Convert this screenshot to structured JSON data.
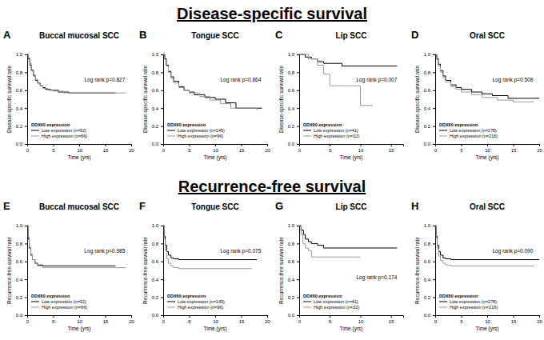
{
  "headings": [
    "Disease-specific survival",
    "Recurrence-free survival"
  ],
  "chart_data": [
    {
      "type": "step",
      "panel": "A",
      "title": "Buccal mucosal SCC",
      "y_label": "Disease-specific survival rate",
      "x_label": "Time (yrs)",
      "annotations": [
        "Log rank p=0.827"
      ],
      "legend_title": "DDX60 expression",
      "legend": "lower left",
      "xlim": [
        0,
        20
      ],
      "xticks": [
        0,
        5,
        10,
        15,
        20
      ],
      "ylim": [
        0,
        1
      ],
      "yticks": [
        {
          "value": 0,
          "label": "0.0"
        },
        {
          "value": 0.2,
          "label": "0.2"
        },
        {
          "value": 0.4,
          "label": "0.4"
        },
        {
          "value": 0.6,
          "label": "0.6"
        },
        {
          "value": 0.8,
          "label": "0.8"
        },
        {
          "value": 1,
          "label": "1.0"
        }
      ],
      "series": [
        {
          "name": "Low expression (n=92)",
          "color": "#000000",
          "x": [
            0,
            0.2,
            0.5,
            0.8,
            1.2,
            1.6,
            2,
            2.5,
            3,
            3.5,
            4.5,
            6,
            8,
            17
          ],
          "values": [
            1,
            0.95,
            0.88,
            0.82,
            0.76,
            0.71,
            0.68,
            0.65,
            0.63,
            0.61,
            0.6,
            0.58,
            0.57,
            0.57
          ]
        },
        {
          "name": "High expression (n=66)",
          "color": "#999999",
          "x": [
            0,
            0.2,
            0.5,
            0.8,
            1.2,
            1.6,
            2,
            2.5,
            3,
            4,
            5,
            7,
            19
          ],
          "values": [
            1,
            0.96,
            0.9,
            0.83,
            0.77,
            0.72,
            0.68,
            0.65,
            0.62,
            0.6,
            0.59,
            0.57,
            0.57
          ]
        }
      ]
    },
    {
      "type": "step",
      "panel": "B",
      "title": "Tongue SCC",
      "y_label": "Disease-specific survival rate",
      "x_label": "Time (yrs)",
      "annotations": [
        "Log rank p=0.864"
      ],
      "legend_title": "DDX60 expression",
      "legend": "lower left",
      "xlim": [
        0,
        20
      ],
      "xticks": [
        0,
        5,
        10,
        15,
        20
      ],
      "ylim": [
        0,
        1
      ],
      "yticks": [
        {
          "value": 0,
          "label": "0.0"
        },
        {
          "value": 0.2,
          "label": "0.2"
        },
        {
          "value": 0.4,
          "label": "0.4"
        },
        {
          "value": 0.6,
          "label": "0.6"
        },
        {
          "value": 0.8,
          "label": "0.8"
        },
        {
          "value": 1,
          "label": "1.0"
        }
      ],
      "series": [
        {
          "name": "Low expression (n=145)",
          "color": "#000000",
          "x": [
            0,
            0.3,
            0.6,
            1,
            1.5,
            2,
            3,
            4,
            5,
            6,
            8,
            10,
            12,
            14,
            19
          ],
          "values": [
            1,
            0.95,
            0.88,
            0.81,
            0.75,
            0.7,
            0.64,
            0.6,
            0.58,
            0.55,
            0.52,
            0.5,
            0.46,
            0.4,
            0.4
          ]
        },
        {
          "name": "High expression (n=96)",
          "color": "#999999",
          "x": [
            0,
            0.3,
            0.6,
            1,
            1.5,
            2,
            3,
            4,
            5,
            7,
            9,
            11,
            13,
            18
          ],
          "values": [
            1,
            0.94,
            0.87,
            0.8,
            0.73,
            0.68,
            0.63,
            0.6,
            0.57,
            0.53,
            0.49,
            0.45,
            0.4,
            0.38
          ]
        }
      ]
    },
    {
      "type": "step",
      "panel": "C",
      "title": "Lip SCC",
      "y_label": "Disease-specific survival rate",
      "x_label": "Time (yrs)",
      "annotations": [
        "Log rank p=0.007"
      ],
      "legend_title": "DDX60 expression",
      "legend": "lower left",
      "xlim": [
        0,
        17
      ],
      "xticks": [
        0,
        5,
        10,
        15
      ],
      "ylim": [
        0,
        1
      ],
      "yticks": [
        {
          "value": 0,
          "label": "0.0"
        },
        {
          "value": 0.2,
          "label": "0.2"
        },
        {
          "value": 0.4,
          "label": "0.4"
        },
        {
          "value": 0.6,
          "label": "0.6"
        },
        {
          "value": 0.8,
          "label": "0.8"
        },
        {
          "value": 1,
          "label": "1.0"
        }
      ],
      "series": [
        {
          "name": "Low expression (n=41)",
          "color": "#000000",
          "x": [
            0,
            1,
            2,
            3,
            4,
            5,
            7,
            16
          ],
          "values": [
            1,
            0.97,
            0.95,
            0.92,
            0.9,
            0.9,
            0.87,
            0.87
          ]
        },
        {
          "name": "High expression (n=32)",
          "color": "#999999",
          "x": [
            0,
            1.5,
            3,
            4,
            5,
            6,
            10,
            12
          ],
          "values": [
            1,
            0.95,
            0.88,
            0.78,
            0.65,
            0.65,
            0.43,
            0.43
          ]
        }
      ]
    },
    {
      "type": "step",
      "panel": "D",
      "title": "Oral SCC",
      "y_label": "Disease-specific survival rate",
      "x_label": "Time (yrs)",
      "annotations": [
        "Log rank p=0.508"
      ],
      "legend_title": "DDX60 expression",
      "legend": "lower left",
      "xlim": [
        0,
        20
      ],
      "xticks": [
        0,
        5,
        10,
        15,
        20
      ],
      "ylim": [
        0,
        1
      ],
      "yticks": [
        {
          "value": 0,
          "label": "0.0"
        },
        {
          "value": 0.2,
          "label": "0.2"
        },
        {
          "value": 0.4,
          "label": "0.4"
        },
        {
          "value": 0.6,
          "label": "0.6"
        },
        {
          "value": 0.8,
          "label": "0.8"
        },
        {
          "value": 1,
          "label": "1.0"
        }
      ],
      "series": [
        {
          "name": "Low expression (n=278)",
          "color": "#000000",
          "x": [
            0,
            0.3,
            0.6,
            1,
            1.5,
            2,
            3,
            4,
            5,
            7,
            9,
            11,
            14,
            20
          ],
          "values": [
            1,
            0.95,
            0.89,
            0.82,
            0.76,
            0.71,
            0.66,
            0.63,
            0.61,
            0.58,
            0.56,
            0.54,
            0.51,
            0.51
          ]
        },
        {
          "name": "High expression (n=216)",
          "color": "#999999",
          "x": [
            0,
            0.3,
            0.6,
            1,
            1.5,
            2,
            3,
            4,
            5,
            7,
            9,
            12,
            15,
            19
          ],
          "values": [
            1,
            0.94,
            0.87,
            0.8,
            0.74,
            0.69,
            0.64,
            0.61,
            0.58,
            0.55,
            0.52,
            0.49,
            0.47,
            0.47
          ]
        }
      ]
    },
    {
      "type": "step",
      "panel": "E",
      "title": "Buccal mucosal SCC",
      "y_label": "Recurrence-free survival rate",
      "x_label": "Time (yrs)",
      "annotations": [
        "Log rank p=0.985"
      ],
      "legend_title": "DDX60 expression",
      "legend": "lower left",
      "xlim": [
        0,
        20
      ],
      "xticks": [
        0,
        5,
        10,
        15,
        20
      ],
      "ylim": [
        0,
        1
      ],
      "yticks": [
        {
          "value": 0,
          "label": "0.0"
        },
        {
          "value": 0.2,
          "label": "0.2"
        },
        {
          "value": 0.4,
          "label": "0.4"
        },
        {
          "value": 0.6,
          "label": "0.6"
        },
        {
          "value": 0.8,
          "label": "0.8"
        },
        {
          "value": 1,
          "label": "1.0"
        }
      ],
      "series": [
        {
          "name": "Low expression (n=92)",
          "color": "#000000",
          "x": [
            0,
            0.2,
            0.4,
            0.7,
            1,
            1.5,
            2,
            3,
            17
          ],
          "values": [
            1,
            0.85,
            0.75,
            0.67,
            0.62,
            0.58,
            0.56,
            0.55,
            0.55
          ]
        },
        {
          "name": "High expression (n=66)",
          "color": "#999999",
          "x": [
            0,
            0.2,
            0.4,
            0.7,
            1,
            1.5,
            2,
            3,
            19
          ],
          "values": [
            1,
            0.87,
            0.76,
            0.68,
            0.62,
            0.58,
            0.55,
            0.53,
            0.53
          ]
        }
      ]
    },
    {
      "type": "step",
      "panel": "F",
      "title": "Tongue SCC",
      "y_label": "Recurrence-free survival rate",
      "x_label": "Time (yrs)",
      "annotations": [
        "Log rank p=0.075"
      ],
      "legend_title": "DDX60 expression",
      "legend": "lower left",
      "xlim": [
        0,
        20
      ],
      "xticks": [
        0,
        5,
        10,
        15,
        20
      ],
      "ylim": [
        0,
        1
      ],
      "yticks": [
        {
          "value": 0,
          "label": "0.0"
        },
        {
          "value": 0.2,
          "label": "0.2"
        },
        {
          "value": 0.4,
          "label": "0.4"
        },
        {
          "value": 0.6,
          "label": "0.6"
        },
        {
          "value": 0.8,
          "label": "0.8"
        },
        {
          "value": 1,
          "label": "1.0"
        }
      ],
      "series": [
        {
          "name": "Low expression (n=145)",
          "color": "#000000",
          "x": [
            0,
            0.2,
            0.4,
            0.7,
            1,
            1.5,
            2,
            3,
            18
          ],
          "values": [
            1,
            0.88,
            0.78,
            0.71,
            0.67,
            0.64,
            0.63,
            0.62,
            0.62
          ]
        },
        {
          "name": "High expression (n=96)",
          "color": "#999999",
          "x": [
            0,
            0.2,
            0.4,
            0.7,
            1,
            1.5,
            2,
            3,
            17
          ],
          "values": [
            1,
            0.85,
            0.72,
            0.63,
            0.58,
            0.55,
            0.53,
            0.52,
            0.52
          ]
        }
      ]
    },
    {
      "type": "step",
      "panel": "G",
      "title": "Lip SCC",
      "y_label": "Recurrence-free survival rate",
      "x_label": "Time (yrs)",
      "annotations": [
        "Log rank p=0.174"
      ],
      "legend_title": "DDX60 expression",
      "legend": "lower left",
      "xlim": [
        0,
        17
      ],
      "xticks": [
        0,
        5,
        10,
        15
      ],
      "ylim": [
        0,
        1
      ],
      "yticks": [
        {
          "value": 0,
          "label": "0.0"
        },
        {
          "value": 0.2,
          "label": "0.2"
        },
        {
          "value": 0.4,
          "label": "0.4"
        },
        {
          "value": 0.6,
          "label": "0.6"
        },
        {
          "value": 0.8,
          "label": "0.8"
        },
        {
          "value": 1,
          "label": "1.0"
        }
      ],
      "series": [
        {
          "name": "Low expression (n=41)",
          "color": "#000000",
          "x": [
            0,
            0.3,
            0.7,
            1,
            1.5,
            2,
            3,
            4,
            16
          ],
          "values": [
            1,
            0.95,
            0.9,
            0.85,
            0.82,
            0.8,
            0.78,
            0.75,
            0.75
          ]
        },
        {
          "name": "High expression (n=32)",
          "color": "#999999",
          "x": [
            0,
            0.3,
            0.6,
            1,
            1.5,
            2,
            10
          ],
          "values": [
            1,
            0.9,
            0.8,
            0.75,
            0.72,
            0.65,
            0.65
          ]
        }
      ]
    },
    {
      "type": "step",
      "panel": "H",
      "title": "Oral SCC",
      "y_label": "Recurrence-free survival rate",
      "x_label": "Time (yrs)",
      "annotations": [
        "Log rank p=0.090"
      ],
      "legend_title": "DDX60 expression",
      "legend": "lower left",
      "xlim": [
        0,
        20
      ],
      "xticks": [
        0,
        5,
        10,
        15,
        20
      ],
      "ylim": [
        0,
        1
      ],
      "yticks": [
        {
          "value": 0,
          "label": "0.0"
        },
        {
          "value": 0.2,
          "label": "0.2"
        },
        {
          "value": 0.4,
          "label": "0.4"
        },
        {
          "value": 0.6,
          "label": "0.6"
        },
        {
          "value": 0.8,
          "label": "0.8"
        },
        {
          "value": 1,
          "label": "1.0"
        }
      ],
      "series": [
        {
          "name": "Low expression (n=278)",
          "color": "#000000",
          "x": [
            0,
            0.2,
            0.4,
            0.7,
            1,
            1.5,
            2,
            3,
            20
          ],
          "values": [
            1,
            0.88,
            0.78,
            0.71,
            0.67,
            0.64,
            0.63,
            0.62,
            0.62
          ]
        },
        {
          "name": "High expression (n=216)",
          "color": "#999999",
          "x": [
            0,
            0.2,
            0.4,
            0.7,
            1,
            1.5,
            2,
            3,
            19
          ],
          "values": [
            1,
            0.86,
            0.74,
            0.66,
            0.61,
            0.58,
            0.56,
            0.55,
            0.55
          ]
        }
      ]
    }
  ]
}
